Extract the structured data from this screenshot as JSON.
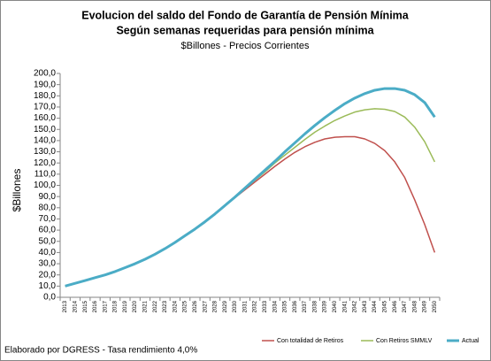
{
  "chart_data": {
    "type": "line",
    "title": "Evolucion del saldo del Fondo de Garantía de Pensión Mínima",
    "subtitle": "Según semanas requeridas para pensión mínima",
    "units_note": "$Billones - Precios Corrientes",
    "y_label": "$Billones",
    "note": "Elaborado por DGRESS - Tasa rendimiento 4,0%",
    "legend": "bottom",
    "grid": false,
    "categories": [
      "2013",
      "2014",
      "2015",
      "2016",
      "2017",
      "2018",
      "2019",
      "2020",
      "2021",
      "2022",
      "2023",
      "2024",
      "2025",
      "2026",
      "2027",
      "2028",
      "2029",
      "2030",
      "2031",
      "2032",
      "2033",
      "2034",
      "2035",
      "2036",
      "2037",
      "2038",
      "2039",
      "2040",
      "2041",
      "2042",
      "2043",
      "2044",
      "2045",
      "2046",
      "2047",
      "2048",
      "2049",
      "2050"
    ],
    "series": [
      {
        "name": "Con totalidad de Retiros",
        "color": "#c0504d",
        "width": 1.5,
        "values": [
          10,
          12.5,
          15,
          17.5,
          20,
          23,
          26.5,
          30,
          34,
          38.5,
          43.5,
          49,
          55,
          61,
          67.5,
          74.5,
          82,
          89,
          96,
          103,
          110,
          117,
          123.5,
          129.5,
          134.5,
          138.5,
          141.5,
          143,
          143.5,
          143.5,
          141.5,
          137.5,
          131,
          121,
          107,
          87,
          65,
          40
        ]
      },
      {
        "name": "Con Retiros SMMLV",
        "color": "#9bbb59",
        "width": 1.5,
        "values": [
          10,
          12.5,
          15,
          17.5,
          20,
          23,
          26.5,
          30,
          34,
          38.5,
          43.5,
          49,
          55,
          61,
          67.5,
          74.5,
          82,
          89.5,
          97,
          104.5,
          112,
          120,
          127,
          134,
          141,
          147.5,
          153,
          158,
          162,
          165.5,
          167.5,
          168.5,
          168,
          166,
          161,
          152,
          139,
          121
        ]
      },
      {
        "name": "Actual",
        "color": "#4bacc6",
        "width": 3,
        "values": [
          10,
          12.5,
          15,
          17.5,
          20,
          23,
          26.5,
          30,
          34,
          38.5,
          43.5,
          49,
          55,
          61,
          67.5,
          74.5,
          82,
          89.5,
          97.5,
          105.5,
          113.5,
          121.5,
          130,
          138,
          146,
          153.5,
          160.5,
          167,
          173,
          178,
          182,
          185,
          186.5,
          186.5,
          185,
          181,
          174,
          161
        ]
      }
    ],
    "ylim": [
      0,
      200
    ],
    "yticks": [
      {
        "value": 0,
        "label": "0,0"
      },
      {
        "value": 10,
        "label": "10,0"
      },
      {
        "value": 20,
        "label": "20,0"
      },
      {
        "value": 30,
        "label": "30,0"
      },
      {
        "value": 40,
        "label": "40,0"
      },
      {
        "value": 50,
        "label": "50,0"
      },
      {
        "value": 60,
        "label": "60,0"
      },
      {
        "value": 70,
        "label": "70,0"
      },
      {
        "value": 80,
        "label": "80,0"
      },
      {
        "value": 90,
        "label": "90,0"
      },
      {
        "value": 100,
        "label": "100,0"
      },
      {
        "value": 110,
        "label": "110,0"
      },
      {
        "value": 120,
        "label": "120,0"
      },
      {
        "value": 130,
        "label": "130,0"
      },
      {
        "value": 140,
        "label": "140,0"
      },
      {
        "value": 150,
        "label": "150,0"
      },
      {
        "value": 160,
        "label": "160,0"
      },
      {
        "value": 170,
        "label": "170,0"
      },
      {
        "value": 180,
        "label": "180,0"
      },
      {
        "value": 190,
        "label": "190,0"
      },
      {
        "value": 200,
        "label": "200,0"
      }
    ]
  }
}
